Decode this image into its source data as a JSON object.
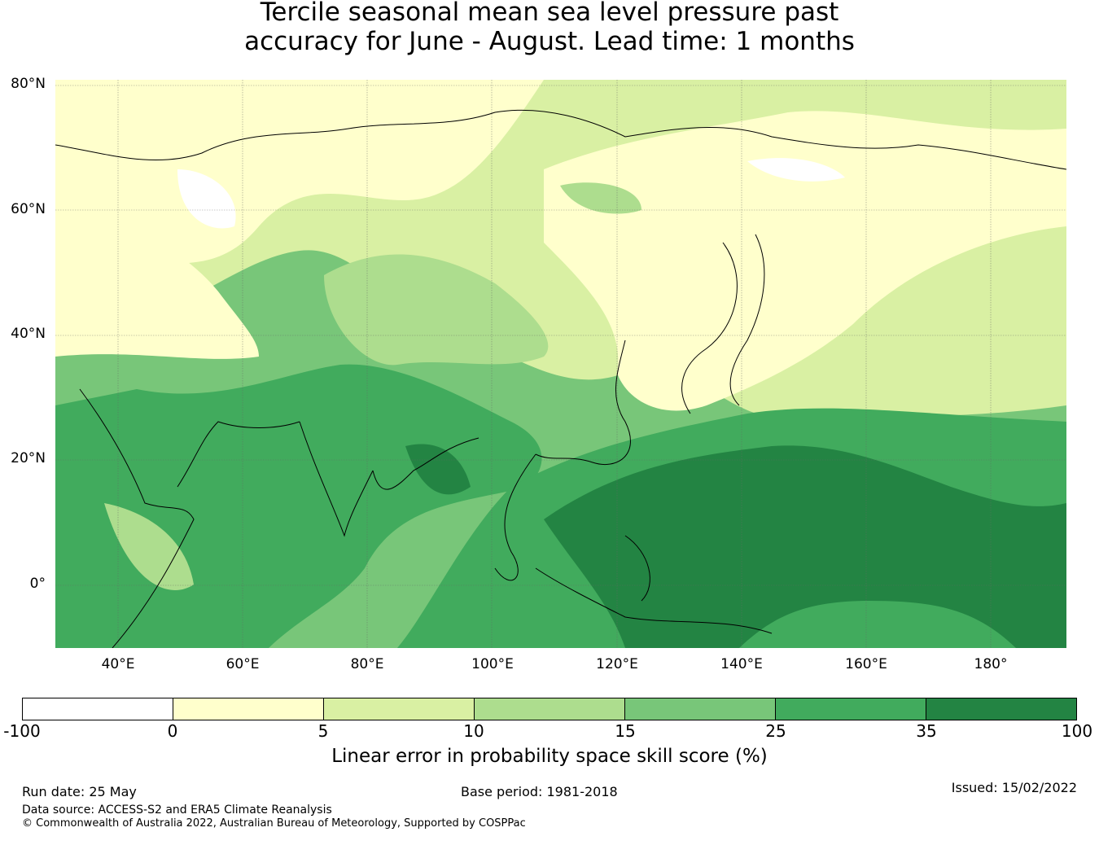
{
  "title": {
    "line1": "Tercile seasonal mean sea level pressure past",
    "line2": "accuracy for June - August. Lead time: 1 months"
  },
  "map": {
    "lat_labels": [
      "80°N",
      "60°N",
      "40°N",
      "20°N",
      "0°"
    ],
    "lon_labels": [
      "40°E",
      "60°E",
      "80°E",
      "100°E",
      "120°E",
      "140°E",
      "160°E",
      "180°"
    ],
    "lat_values": [
      80,
      60,
      40,
      20,
      0
    ],
    "lon_values": [
      40,
      60,
      80,
      100,
      120,
      140,
      160,
      180
    ],
    "extent": {
      "lon_min": 30,
      "lon_max": 192,
      "lat_min": -11,
      "lat_max": 80
    }
  },
  "colorbar": {
    "ticks": [
      "-100",
      "0",
      "5",
      "10",
      "15",
      "25",
      "35",
      "100"
    ],
    "colors": [
      "#ffffff",
      "#ffffcc",
      "#d9f0a3",
      "#addd8e",
      "#78c679",
      "#41ab5d",
      "#238443"
    ],
    "label": "Linear error in probability space skill score (%)"
  },
  "footer": {
    "run_date": "Run date: 25 May",
    "base_period": "Base period: 1981-2018",
    "issued": "Issued: 15/02/2022",
    "data_source": "Data source: ACCESS-S2 and ERA5 Climate Reanalysis",
    "copyright": "© Commonwealth of Australia 2022, Australian Bureau of Meteorology, Supported by COSPPac"
  }
}
